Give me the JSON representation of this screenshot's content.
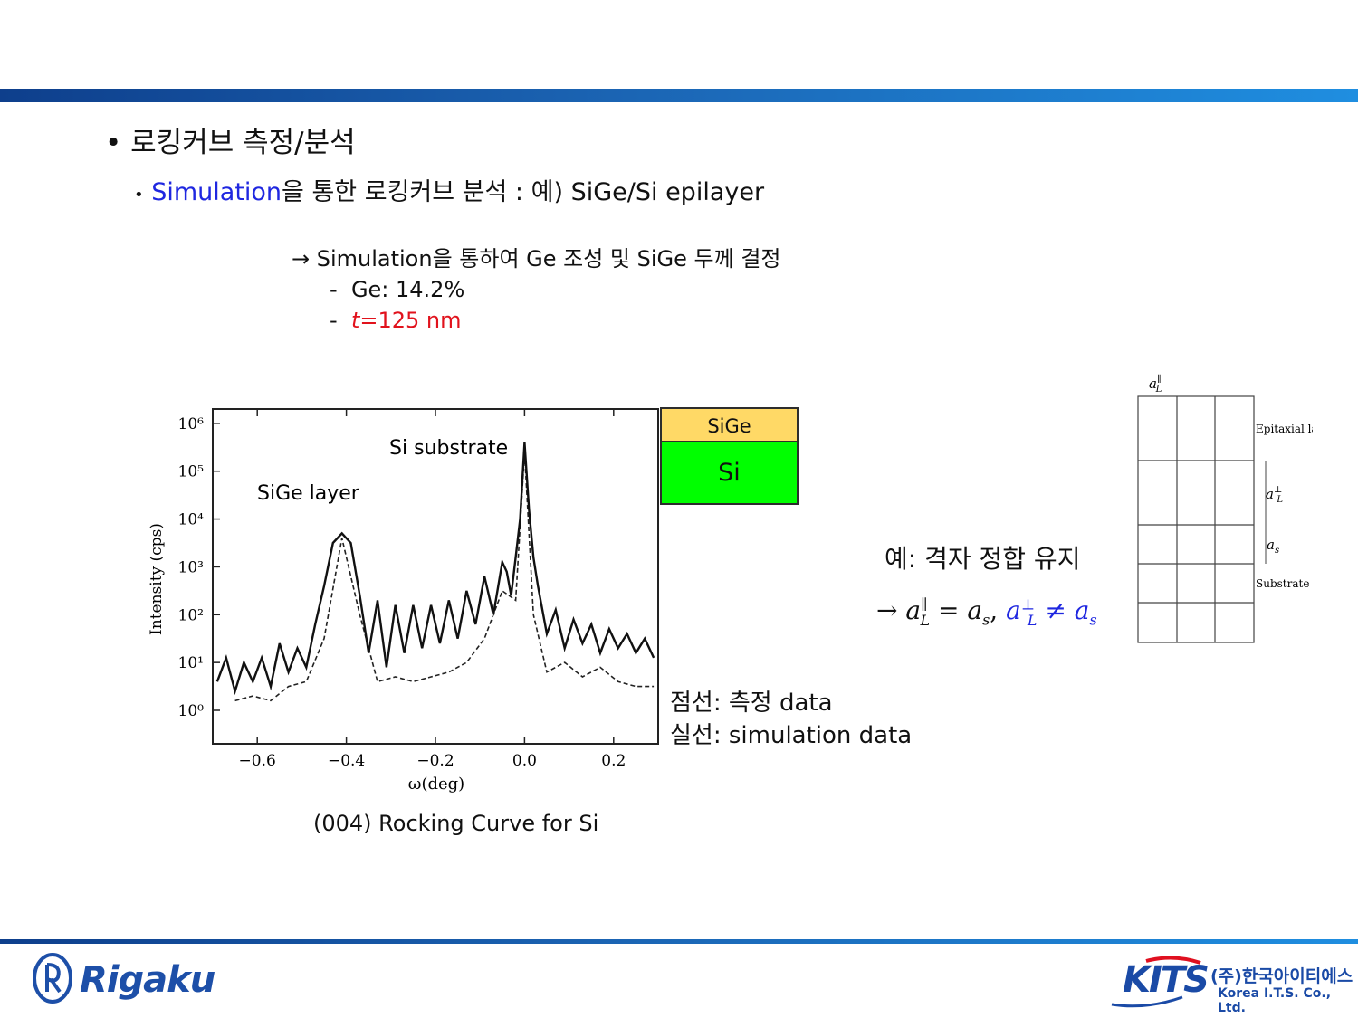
{
  "heading": {
    "bullet": "•",
    "text": "로킹커브 측정/분석"
  },
  "subheading": {
    "bullet": "•",
    "highlight": "Simulation",
    "rest": "을 통한 로킹커브 분석 : 예) SiGe/Si epilayer"
  },
  "result": {
    "arrow_line": "→ Simulation을 통하여 Ge 조성 및 SiGe 두께 결정",
    "items": [
      {
        "dash": "-",
        "text": "Ge: 14.2%"
      },
      {
        "dash": "-",
        "italic": "t",
        "text": "=125 nm"
      }
    ]
  },
  "chart_data": {
    "type": "line",
    "xlabel": "ω(deg)",
    "ylabel": "Intensity (cps)",
    "xlim": [
      -0.7,
      0.3
    ],
    "ylim_log10": [
      -0.7,
      6.3
    ],
    "yscale": "log",
    "x_ticks": [
      "−0.6",
      "−0.4",
      "−0.2",
      "0.0",
      "0.2"
    ],
    "x_tick_values": [
      -0.6,
      -0.4,
      -0.2,
      0.0,
      0.2
    ],
    "y_ticks": [
      "10⁶",
      "10⁵",
      "10⁴",
      "10³",
      "10²",
      "10¹",
      "10⁰"
    ],
    "y_tick_values": [
      6,
      5,
      4,
      3,
      2,
      1,
      0
    ],
    "annotations": [
      "Si substrate",
      "SiGe layer"
    ],
    "series": [
      {
        "name": "simulation",
        "style": "solid",
        "x": [
          -0.69,
          -0.67,
          -0.65,
          -0.63,
          -0.61,
          -0.59,
          -0.57,
          -0.55,
          -0.53,
          -0.51,
          -0.49,
          -0.47,
          -0.45,
          -0.43,
          -0.41,
          -0.39,
          -0.37,
          -0.35,
          -0.33,
          -0.31,
          -0.29,
          -0.27,
          -0.25,
          -0.23,
          -0.21,
          -0.19,
          -0.17,
          -0.15,
          -0.13,
          -0.11,
          -0.09,
          -0.07,
          -0.05,
          -0.04,
          -0.03,
          -0.02,
          -0.01,
          0.0,
          0.01,
          0.02,
          0.03,
          0.05,
          0.07,
          0.09,
          0.11,
          0.13,
          0.15,
          0.17,
          0.19,
          0.21,
          0.23,
          0.25,
          0.27,
          0.29
        ],
        "log10_y": [
          0.6,
          1.1,
          0.4,
          1.0,
          0.6,
          1.1,
          0.5,
          1.4,
          0.8,
          1.3,
          0.9,
          1.8,
          2.6,
          3.5,
          3.7,
          3.5,
          2.4,
          1.2,
          2.3,
          0.9,
          2.2,
          1.2,
          2.2,
          1.3,
          2.2,
          1.4,
          2.3,
          1.5,
          2.5,
          1.8,
          2.8,
          2.0,
          3.1,
          2.9,
          2.4,
          3.2,
          4.0,
          5.6,
          4.2,
          3.2,
          2.6,
          1.6,
          2.1,
          1.3,
          1.9,
          1.4,
          1.8,
          1.2,
          1.7,
          1.3,
          1.6,
          1.2,
          1.5,
          1.1
        ]
      },
      {
        "name": "measured",
        "style": "dashed",
        "x": [
          -0.65,
          -0.61,
          -0.57,
          -0.53,
          -0.49,
          -0.45,
          -0.41,
          -0.37,
          -0.33,
          -0.29,
          -0.25,
          -0.21,
          -0.17,
          -0.13,
          -0.09,
          -0.05,
          -0.02,
          0.0,
          0.02,
          0.05,
          0.09,
          0.13,
          0.17,
          0.21,
          0.25,
          0.29
        ],
        "log10_y": [
          0.2,
          0.3,
          0.2,
          0.5,
          0.6,
          1.5,
          3.6,
          2.0,
          0.6,
          0.7,
          0.6,
          0.7,
          0.8,
          1.0,
          1.5,
          2.5,
          2.3,
          5.4,
          2.0,
          0.8,
          1.0,
          0.7,
          0.9,
          0.6,
          0.5,
          0.5
        ]
      }
    ]
  },
  "layer_stack": {
    "top": "SiGe",
    "bottom": "Si"
  },
  "figure_caption": "(004) Rocking Curve for Si",
  "legend": {
    "dotted": "점선: 측정 data",
    "solid": "실선: simulation data"
  },
  "example_note": "예: 격자 정합 유지",
  "formula": {
    "arrow": "→",
    "a": "a",
    "parallel": "∥",
    "L": "L",
    "eq": "=",
    "s": "s",
    "perp": "⊥",
    "neq": "≠",
    "comma": ","
  },
  "lattice_diagram": {
    "top_label": "a",
    "epi_label": "Epitaxial layer",
    "substrate_label": "Substrate",
    "aL_perp": "a",
    "as": "a"
  },
  "logos": {
    "rigaku": "Rigaku",
    "kits": "KITS",
    "kits_korean": "(주)한국아이티에스",
    "kits_english": "Korea I.T.S. Co., Ltd."
  },
  "colors": {
    "accent_blue": "#1f27e0",
    "highlight_red": "#e1121c",
    "sige_fill": "#ffd966",
    "si_fill": "#00ff00",
    "bar_blue": "#1b64b3"
  }
}
